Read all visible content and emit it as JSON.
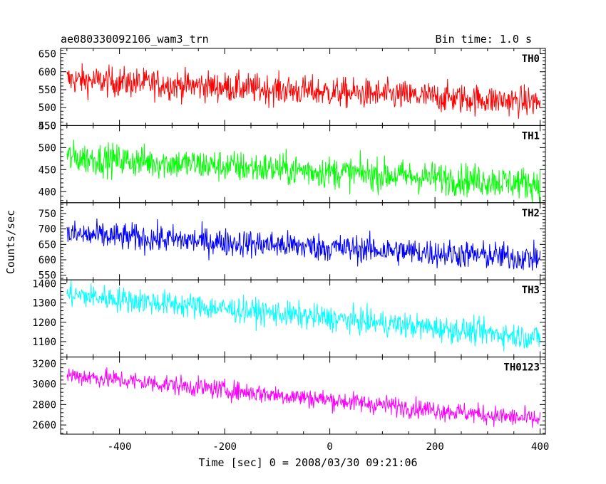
{
  "header": {
    "title": "ae080330092106_wam3_trn",
    "bin_time": "Bin time: 1.0 s"
  },
  "chart_data": {
    "type": "line",
    "xlabel": "Time [sec] 0 = 2008/03/30 09:21:06",
    "ylabel": "Counts/sec",
    "xlim": [
      -512,
      410
    ],
    "xticks": [
      -400,
      -200,
      0,
      200,
      400
    ],
    "x_start": -500,
    "x_end": 400,
    "x_step": 1.0,
    "panels": [
      {
        "name": "TH0",
        "color": "#ff0000",
        "ylim": [
          450,
          665
        ],
        "yticks": [
          450,
          500,
          550,
          600,
          650
        ],
        "trend_start": 578,
        "trend_end": 515,
        "noise_amplitude": 24
      },
      {
        "name": "TH1",
        "color": "#00ff00",
        "ylim": [
          375,
          550
        ],
        "yticks": [
          400,
          450,
          500,
          550
        ],
        "trend_start": 478,
        "trend_end": 418,
        "noise_amplitude": 21
      },
      {
        "name": "TH2",
        "color": "#0000ff",
        "ylim": [
          535,
          785
        ],
        "yticks": [
          550,
          600,
          650,
          700,
          750
        ],
        "trend_start": 683,
        "trend_end": 605,
        "noise_amplitude": 26
      },
      {
        "name": "TH3",
        "color": "#00ffff",
        "ylim": [
          1020,
          1420
        ],
        "yticks": [
          1100,
          1200,
          1300,
          1400
        ],
        "trend_start": 1345,
        "trend_end": 1120,
        "noise_amplitude": 38
      },
      {
        "name": "TH0123",
        "color": "#ff00ff",
        "ylim": [
          2510,
          3265
        ],
        "yticks": [
          2600,
          2800,
          3000,
          3200
        ],
        "trend_start": 3090,
        "trend_end": 2650,
        "noise_amplitude": 55
      }
    ]
  }
}
